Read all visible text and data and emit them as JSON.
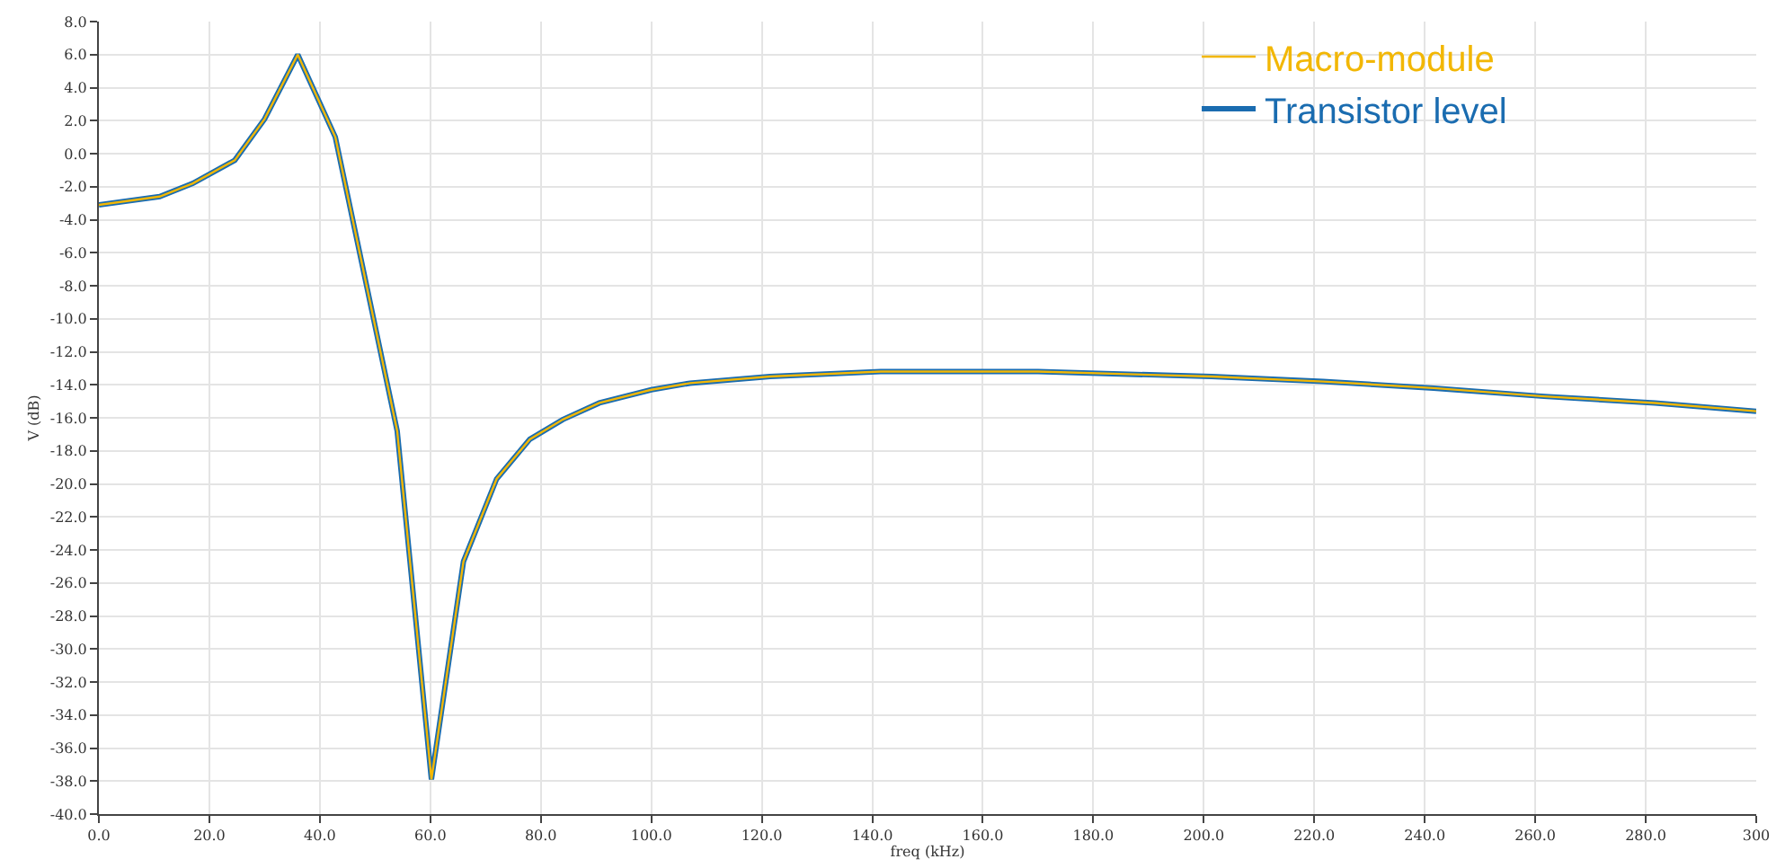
{
  "chart_data": {
    "type": "line",
    "xlabel": "freq (kHz)",
    "ylabel": "V (dB)",
    "x": [
      0,
      11,
      17,
      24.6,
      30,
      36,
      42.8,
      54,
      60.2,
      66,
      72,
      78,
      84,
      90.6,
      100,
      107,
      121.5,
      141.5,
      170,
      201.4,
      221.6,
      241.6,
      261.6,
      281.7,
      300
    ],
    "series": [
      {
        "name": "Macro-module",
        "color": "#f2b705",
        "values": [
          -3.1,
          -2.6,
          -1.8,
          -0.4,
          2.1,
          6.0,
          1.0,
          -16.8,
          -37.9,
          -24.7,
          -19.7,
          -17.3,
          -16.1,
          -15.1,
          -14.3,
          -13.9,
          -13.5,
          -13.2,
          -13.2,
          -13.5,
          -13.8,
          -14.2,
          -14.7,
          -15.1,
          -15.6
        ]
      },
      {
        "name": "Transistor level",
        "color": "#1a6cb0",
        "values": [
          -3.1,
          -2.6,
          -1.8,
          -0.4,
          2.1,
          6.0,
          1.0,
          -16.8,
          -37.9,
          -24.7,
          -19.7,
          -17.3,
          -16.1,
          -15.1,
          -14.3,
          -13.9,
          -13.5,
          -13.2,
          -13.2,
          -13.5,
          -13.8,
          -14.2,
          -14.7,
          -15.1,
          -15.6
        ]
      }
    ],
    "xlim": [
      0,
      300
    ],
    "xticks": [
      {
        "value": 0,
        "label": "0.0"
      },
      {
        "value": 20,
        "label": "20.0"
      },
      {
        "value": 40,
        "label": "40.0"
      },
      {
        "value": 60,
        "label": "60.0"
      },
      {
        "value": 80,
        "label": "80.0"
      },
      {
        "value": 100,
        "label": "100.0"
      },
      {
        "value": 120,
        "label": "120.0"
      },
      {
        "value": 140,
        "label": "140.0"
      },
      {
        "value": 160,
        "label": "160.0"
      },
      {
        "value": 180,
        "label": "180.0"
      },
      {
        "value": 200,
        "label": "200.0"
      },
      {
        "value": 220,
        "label": "220.0"
      },
      {
        "value": 240,
        "label": "240.0"
      },
      {
        "value": 260,
        "label": "260.0"
      },
      {
        "value": 280,
        "label": "280.0"
      },
      {
        "value": 300,
        "label": "300"
      }
    ],
    "ylim": [
      -40,
      8
    ],
    "yticks": [
      {
        "value": -40,
        "label": "-40.0"
      },
      {
        "value": -38,
        "label": "-38.0"
      },
      {
        "value": -36,
        "label": "-36.0"
      },
      {
        "value": -34,
        "label": "-34.0"
      },
      {
        "value": -32,
        "label": "-32.0"
      },
      {
        "value": -30,
        "label": "-30.0"
      },
      {
        "value": -28,
        "label": "-28.0"
      },
      {
        "value": -26,
        "label": "-26.0"
      },
      {
        "value": -24,
        "label": "-24.0"
      },
      {
        "value": -22,
        "label": "-22.0"
      },
      {
        "value": -20,
        "label": "-20.0"
      },
      {
        "value": -18,
        "label": "-18.0"
      },
      {
        "value": -16,
        "label": "-16.0"
      },
      {
        "value": -14,
        "label": "-14.0"
      },
      {
        "value": -12,
        "label": "-12.0"
      },
      {
        "value": -10,
        "label": "-10.0"
      },
      {
        "value": -8,
        "label": "-8.0"
      },
      {
        "value": -6,
        "label": "-6.0"
      },
      {
        "value": -4,
        "label": "-4.0"
      },
      {
        "value": -2,
        "label": "-2.0"
      },
      {
        "value": 0,
        "label": "0.0"
      },
      {
        "value": 2,
        "label": "2.0"
      },
      {
        "value": 4,
        "label": "4.0"
      },
      {
        "value": 6,
        "label": "6.0"
      },
      {
        "value": 8,
        "label": "8.0"
      }
    ],
    "grid": true,
    "legend": "top right",
    "marker": "none",
    "line_style": "solid"
  }
}
